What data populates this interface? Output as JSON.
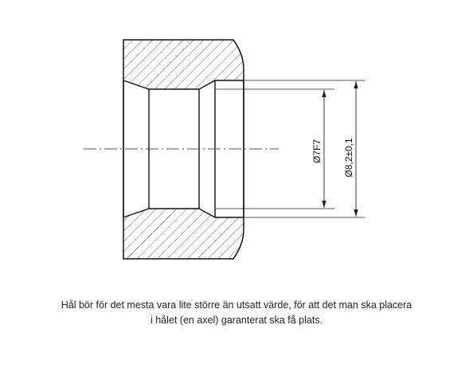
{
  "drawing": {
    "dimension_inner": "Ø7F7",
    "dimension_outer": "Ø8,2±0,1",
    "colors": {
      "line": "#111111",
      "hatch": "#444444",
      "centerline": "#555555",
      "dimension": "#222222"
    }
  },
  "caption": {
    "line1": "Hål bör för det mesta vara lite större än utsatt värde, för att det man ska placera",
    "line2": "i hålet (en axel) garanterat ska få plats."
  }
}
